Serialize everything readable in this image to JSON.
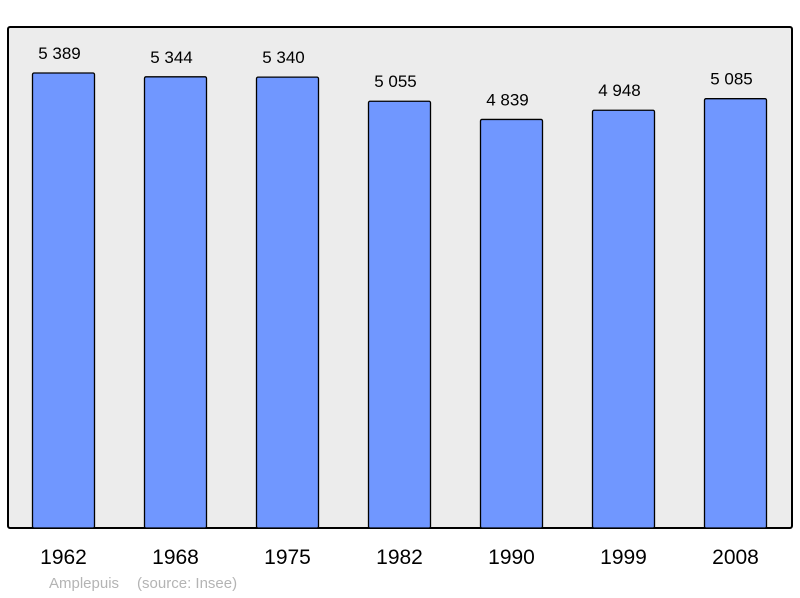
{
  "chart_data": {
    "type": "bar",
    "categories": [
      "1962",
      "1968",
      "1975",
      "1982",
      "1990",
      "1999",
      "2008"
    ],
    "values": [
      5389,
      5344,
      5340,
      5055,
      4839,
      4948,
      5085
    ],
    "data_labels": [
      "5 389",
      "5 344",
      "5 340",
      "5 055",
      "4 839",
      "4 948",
      "5 085"
    ],
    "title": "",
    "xlabel": "",
    "ylabel": "",
    "ylim": [
      0,
      5934
    ],
    "grid": false,
    "legend": "none",
    "colors": {
      "bar": "#7097ff",
      "background": "#ececec",
      "frame": "#000000"
    }
  },
  "caption": {
    "place": "Amplepuis",
    "source": "(source: Insee)"
  }
}
